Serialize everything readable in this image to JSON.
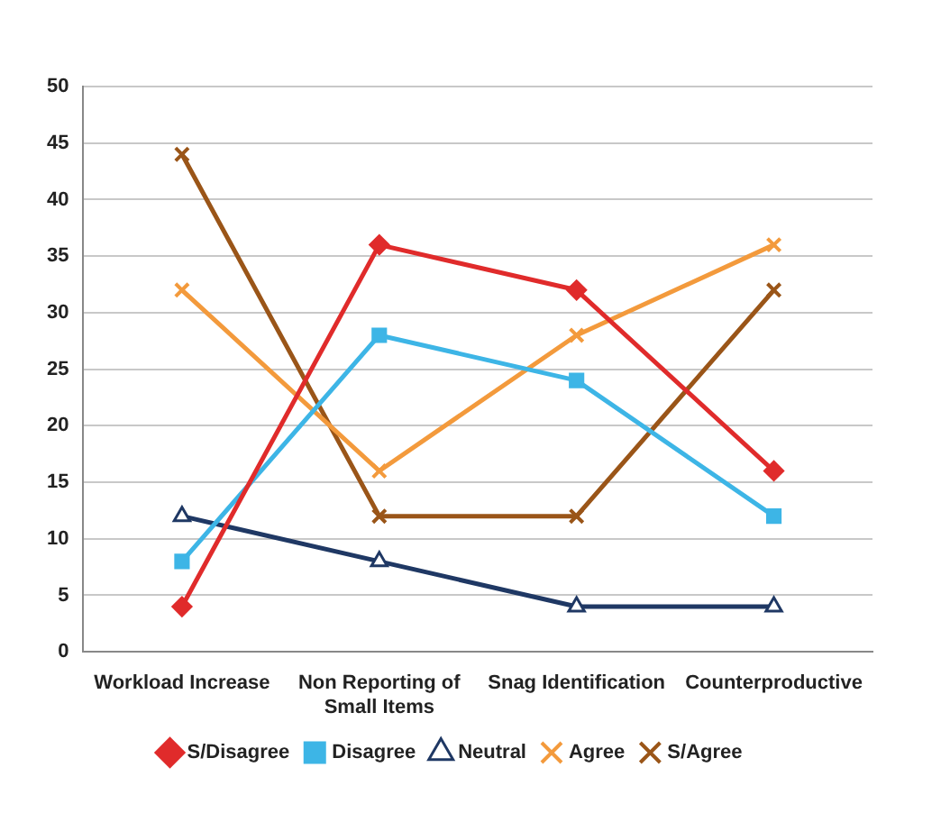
{
  "chart_data": {
    "type": "line",
    "categories": [
      "Workload Increase",
      "Non Reporting of Small Items",
      "Snag Identification",
      "Counterproductive"
    ],
    "series": [
      {
        "name": "S/Disagree",
        "color": "#e02b2b",
        "values": [
          4,
          36,
          32,
          16
        ],
        "marker": "diamond"
      },
      {
        "name": "Disagree",
        "color": "#3db5e6",
        "values": [
          8,
          28,
          24,
          12
        ],
        "marker": "square"
      },
      {
        "name": "Neutral",
        "color": "#1f3864",
        "values": [
          12,
          8,
          4,
          4
        ],
        "marker": "triangle"
      },
      {
        "name": "Agree",
        "color": "#f39a3c",
        "values": [
          32,
          16,
          28,
          36
        ],
        "marker": "cross"
      },
      {
        "name": "S/Agree",
        "color": "#9a5518",
        "values": [
          44,
          12,
          12,
          32
        ],
        "marker": "cross"
      }
    ],
    "ylim": [
      0,
      50
    ],
    "yticks": [
      0,
      5,
      10,
      15,
      20,
      25,
      30,
      35,
      40,
      45,
      50
    ],
    "grid": "y",
    "legend": "bottom",
    "line_style": "solid"
  }
}
